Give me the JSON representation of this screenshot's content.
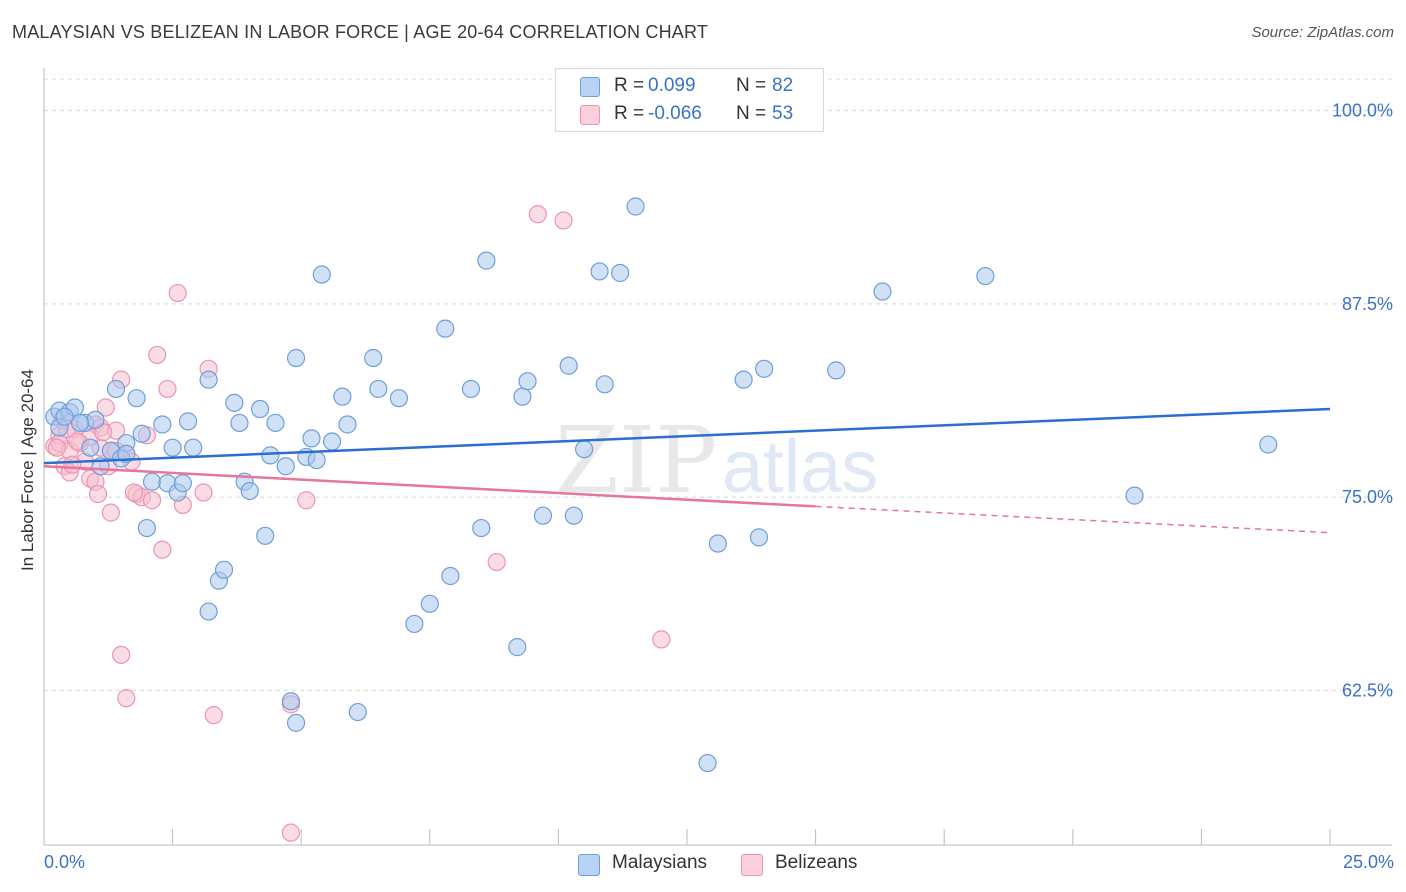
{
  "header": {
    "title": "MALAYSIAN VS BELIZEAN IN LABOR FORCE | AGE 20-64 CORRELATION CHART",
    "source": "Source: ZipAtlas.com"
  },
  "legend": {
    "rows": [
      {
        "r_label": "R =",
        "r_value": "0.099",
        "n_label": "N =",
        "n_value": "82"
      },
      {
        "r_label": "R =",
        "r_value": "-0.066",
        "n_label": "N =",
        "n_value": "53"
      }
    ],
    "series_labels": [
      "Malaysians",
      "Belizeans"
    ]
  },
  "colors": {
    "malaysian_fill": "#a9c8ef",
    "malaysian_stroke": "#6f9fd8",
    "malaysian_line": "#2a6fcf",
    "belizean_fill": "#f6bfd0",
    "belizean_stroke": "#ec94b1",
    "belizean_line": "#e8759b",
    "axis_text": "#3b73c4"
  },
  "chart_data": {
    "type": "scatter",
    "title": "MALAYSIAN VS BELIZEAN IN LABOR FORCE | AGE 20-64 CORRELATION CHART",
    "xlabel": "",
    "ylabel": "In Labor Force | Age 20-64",
    "xlim": [
      0,
      25
    ],
    "ylim": [
      52.5,
      102.5
    ],
    "x_tick_labels": [
      "0.0%",
      "25.0%"
    ],
    "y_ticks": [
      62.5,
      75.0,
      87.5,
      100.0
    ],
    "y_tick_labels": [
      "62.5%",
      "75.0%",
      "87.5%",
      "100.0%"
    ],
    "grid": "horizontal dashed",
    "watermark": "ZIPatlas",
    "series": [
      {
        "name": "Malaysians",
        "r": 0.099,
        "n": 82,
        "trend": {
          "x": [
            0,
            25
          ],
          "y": [
            77.2,
            80.7
          ]
        },
        "points": [
          [
            0.2,
            80.2
          ],
          [
            0.3,
            79.5
          ],
          [
            0.3,
            80.6
          ],
          [
            0.5,
            80.5
          ],
          [
            0.6,
            80.8
          ],
          [
            0.8,
            79.8
          ],
          [
            0.9,
            78.2
          ],
          [
            1.0,
            80.0
          ],
          [
            1.1,
            77.0
          ],
          [
            1.3,
            78.0
          ],
          [
            1.4,
            82.0
          ],
          [
            1.5,
            77.5
          ],
          [
            1.6,
            78.5
          ],
          [
            1.8,
            81.4
          ],
          [
            1.9,
            79.1
          ],
          [
            2.0,
            73.0
          ],
          [
            2.1,
            76.0
          ],
          [
            2.3,
            79.7
          ],
          [
            2.4,
            75.9
          ],
          [
            2.5,
            78.2
          ],
          [
            2.6,
            75.3
          ],
          [
            2.7,
            75.9
          ],
          [
            2.8,
            79.9
          ],
          [
            2.9,
            78.2
          ],
          [
            3.2,
            82.6
          ],
          [
            3.2,
            67.6
          ],
          [
            3.4,
            69.6
          ],
          [
            3.5,
            70.3
          ],
          [
            3.7,
            81.1
          ],
          [
            3.8,
            79.8
          ],
          [
            3.9,
            76.0
          ],
          [
            4.0,
            75.4
          ],
          [
            4.2,
            80.7
          ],
          [
            4.3,
            72.5
          ],
          [
            4.4,
            77.7
          ],
          [
            4.5,
            79.8
          ],
          [
            4.7,
            77.0
          ],
          [
            4.8,
            61.8
          ],
          [
            4.9,
            60.4
          ],
          [
            4.9,
            84.0
          ],
          [
            5.1,
            77.6
          ],
          [
            5.2,
            78.8
          ],
          [
            5.3,
            77.4
          ],
          [
            5.4,
            89.4
          ],
          [
            5.6,
            78.6
          ],
          [
            5.8,
            81.5
          ],
          [
            5.9,
            79.7
          ],
          [
            6.1,
            61.1
          ],
          [
            6.4,
            84.0
          ],
          [
            6.5,
            82.0
          ],
          [
            6.9,
            81.4
          ],
          [
            7.2,
            66.8
          ],
          [
            7.5,
            68.1
          ],
          [
            7.8,
            85.9
          ],
          [
            7.9,
            69.9
          ],
          [
            8.3,
            82.0
          ],
          [
            8.5,
            73.0
          ],
          [
            8.6,
            90.3
          ],
          [
            9.2,
            65.3
          ],
          [
            9.3,
            81.5
          ],
          [
            9.4,
            82.5
          ],
          [
            9.7,
            73.8
          ],
          [
            10.2,
            83.5
          ],
          [
            10.3,
            73.8
          ],
          [
            10.5,
            78.1
          ],
          [
            10.8,
            89.6
          ],
          [
            10.9,
            82.3
          ],
          [
            11.2,
            89.5
          ],
          [
            11.5,
            93.8
          ],
          [
            13.1,
            72.0
          ],
          [
            13.6,
            82.6
          ],
          [
            13.9,
            72.4
          ],
          [
            14.0,
            83.3
          ],
          [
            15.4,
            83.2
          ],
          [
            16.3,
            88.3
          ],
          [
            18.3,
            89.3
          ],
          [
            21.2,
            75.1
          ],
          [
            23.8,
            78.4
          ],
          [
            12.9,
            57.8
          ],
          [
            0.4,
            80.2
          ],
          [
            0.7,
            79.8
          ],
          [
            1.6,
            77.8
          ]
        ]
      },
      {
        "name": "Belizeans",
        "r": -0.066,
        "n": 53,
        "trend": {
          "x": [
            0,
            15
          ],
          "y": [
            77.0,
            74.4
          ]
        },
        "trend_dashed": {
          "x": [
            15,
            25
          ],
          "y": [
            74.4,
            72.7
          ]
        },
        "points": [
          [
            0.2,
            78.3
          ],
          [
            0.3,
            79.0
          ],
          [
            0.3,
            78.5
          ],
          [
            0.4,
            77.0
          ],
          [
            0.5,
            78.0
          ],
          [
            0.5,
            76.6
          ],
          [
            0.6,
            79.4
          ],
          [
            0.7,
            78.5
          ],
          [
            0.8,
            77.3
          ],
          [
            0.9,
            76.2
          ],
          [
            1.0,
            79.7
          ],
          [
            1.1,
            79.5
          ],
          [
            1.0,
            76.0
          ],
          [
            1.1,
            78.2
          ],
          [
            1.2,
            80.8
          ],
          [
            1.3,
            78.0
          ],
          [
            1.3,
            74.0
          ],
          [
            1.4,
            79.3
          ],
          [
            1.5,
            82.6
          ],
          [
            1.5,
            64.8
          ],
          [
            1.6,
            77.8
          ],
          [
            1.7,
            77.3
          ],
          [
            1.8,
            75.2
          ],
          [
            1.9,
            75.0
          ],
          [
            2.0,
            79.0
          ],
          [
            2.1,
            74.8
          ],
          [
            2.2,
            84.2
          ],
          [
            2.3,
            71.6
          ],
          [
            2.4,
            82.0
          ],
          [
            2.6,
            88.2
          ],
          [
            2.7,
            74.5
          ],
          [
            3.2,
            83.3
          ],
          [
            3.1,
            75.3
          ],
          [
            3.3,
            60.9
          ],
          [
            4.8,
            61.6
          ],
          [
            4.8,
            53.3
          ],
          [
            5.1,
            74.8
          ],
          [
            8.8,
            70.8
          ],
          [
            9.6,
            93.3
          ],
          [
            10.1,
            92.9
          ],
          [
            12.0,
            65.8
          ],
          [
            0.25,
            78.2
          ],
          [
            0.35,
            80.0
          ],
          [
            0.9,
            78.9
          ],
          [
            1.15,
            79.2
          ],
          [
            1.25,
            77.0
          ],
          [
            1.4,
            78.0
          ],
          [
            1.6,
            62.0
          ],
          [
            1.75,
            75.3
          ],
          [
            0.55,
            77.1
          ],
          [
            0.65,
            78.6
          ],
          [
            1.05,
            75.2
          ],
          [
            0.45,
            79.4
          ]
        ]
      }
    ]
  }
}
